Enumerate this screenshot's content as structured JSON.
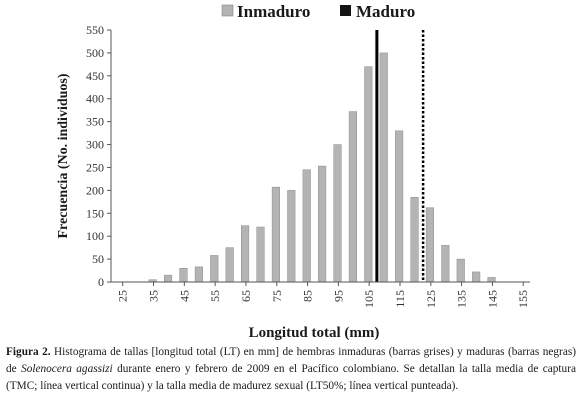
{
  "chart_data": {
    "type": "bar",
    "categories": [
      "25",
      "27.5",
      "30",
      "32.5",
      "35",
      "37.5",
      "40",
      "42.5",
      "45",
      "47.5",
      "50",
      "52.5",
      "55",
      "57.5",
      "60",
      "62.5",
      "65",
      "67.5",
      "70",
      "72.5",
      "75",
      "77.5",
      "80",
      "82.5",
      "85",
      "87.5",
      "90",
      "92.5",
      "95",
      "97.5",
      "100",
      "102.5",
      "105",
      "107.5",
      "110",
      "112.5",
      "115",
      "117.5",
      "120",
      "122.5",
      "125",
      "127.5",
      "130",
      "132.5",
      "135",
      "137.5",
      "140",
      "142.5",
      "145",
      "147.5",
      "150",
      "152.5",
      "155"
    ],
    "x_tick_labels": [
      "25",
      "35",
      "45",
      "55",
      "65",
      "75",
      "85",
      "95",
      "105",
      "115",
      "125",
      "135",
      "145",
      "155"
    ],
    "y_tick_labels": [
      "0",
      "50",
      "100",
      "150",
      "200",
      "250",
      "300",
      "350",
      "400",
      "450",
      "500",
      "550"
    ],
    "ylim": [
      0,
      550
    ],
    "xlabel": "Longitud total (mm)",
    "ylabel": "Frecuencia (No. individuos)",
    "legend_position": "top-center",
    "series": [
      {
        "name": "Inmaduro",
        "color": "#b4b4b4",
        "values": [
          0,
          0,
          0,
          0,
          5,
          0,
          15,
          0,
          30,
          0,
          33,
          0,
          58,
          0,
          75,
          0,
          123,
          0,
          120,
          0,
          207,
          0,
          200,
          0,
          245,
          0,
          253,
          0,
          300,
          0,
          372,
          0,
          470,
          0,
          500,
          0,
          330,
          0,
          185,
          0,
          162,
          0,
          80,
          0,
          50,
          0,
          22,
          0,
          10,
          0,
          0,
          0,
          0
        ]
      },
      {
        "name": "Maduro",
        "color": "#141414",
        "values": [
          0,
          0,
          0,
          0,
          0,
          0,
          0,
          0,
          0,
          0,
          0,
          0,
          0,
          0,
          0,
          0,
          0,
          0,
          0,
          0,
          0,
          0,
          0,
          0,
          0,
          0,
          0,
          0,
          0,
          0,
          0,
          0,
          0,
          0,
          0,
          0,
          0,
          0,
          0,
          0,
          0,
          0,
          0,
          0,
          0,
          0,
          0,
          0,
          0,
          0,
          0,
          0,
          0
        ]
      }
    ],
    "reference_lines": [
      {
        "x": 107.5,
        "style": "solid"
      },
      {
        "x": 122.5,
        "style": "dotted"
      }
    ]
  },
  "caption": {
    "label": "Figura 2.",
    "part1": " Histograma de tallas [longitud total (LT) en mm] de hembras inmaduras (barras grises) y maduras (barras negras) de ",
    "species": "Solenocera agassizi",
    "part2": " durante enero y febrero de 2009 en el Pacífico colombiano. Se detallan la talla media de captura (TMC; línea vertical continua) y la talla media de madurez sexual (LT50%; línea vertical punteada)."
  }
}
